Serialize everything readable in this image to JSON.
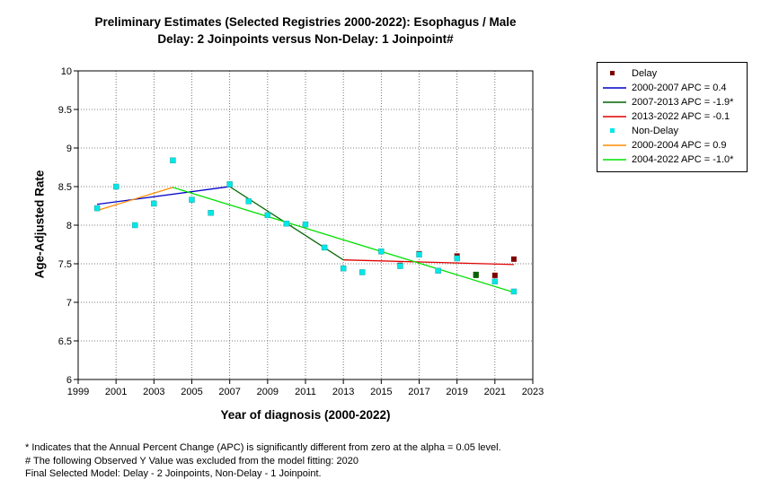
{
  "chart_data": {
    "type": "scatter",
    "title": "Preliminary Estimates (Selected Registries 2000-2022): Esophagus / Male",
    "subtitle": "Delay: 2 Joinpoints  versus  Non-Delay: 1 Joinpoint#",
    "xlabel": "Year of diagnosis (2000-2022)",
    "ylabel": "Age-Adjusted Rate",
    "xlim": [
      1999,
      2023
    ],
    "ylim": [
      6,
      10
    ],
    "x_ticks": [
      1999,
      2001,
      2003,
      2005,
      2007,
      2009,
      2011,
      2013,
      2015,
      2017,
      2019,
      2021,
      2023
    ],
    "y_ticks": [
      6,
      6.5,
      7,
      7.5,
      8,
      8.5,
      9,
      9.5,
      10
    ],
    "y_tick_labels": [
      "6",
      "6.5",
      "7",
      "7.5",
      "8",
      "8.5",
      "9",
      "9.5",
      "10"
    ],
    "grid": true,
    "legend_position": "right",
    "series": [
      {
        "name": "Delay",
        "kind": "points",
        "color": "#800000",
        "x": [
          2000,
          2001,
          2002,
          2003,
          2004,
          2005,
          2006,
          2007,
          2008,
          2009,
          2010,
          2011,
          2012,
          2013,
          2014,
          2015,
          2016,
          2017,
          2018,
          2019,
          2020,
          2021,
          2022
        ],
        "y": [
          8.22,
          8.5,
          8.0,
          8.28,
          8.84,
          8.33,
          8.16,
          8.53,
          8.31,
          8.13,
          8.02,
          8.01,
          7.71,
          7.44,
          7.39,
          7.66,
          7.48,
          7.63,
          7.41,
          7.6,
          7.36,
          7.35,
          7.56
        ]
      },
      {
        "name": "2000-2007 APC  =  0.4",
        "kind": "line",
        "color": "#0000c8",
        "x": [
          2000,
          2007
        ],
        "y": [
          8.27,
          8.5
        ]
      },
      {
        "name": "2007-2013 APC  =  -1.9*",
        "kind": "line",
        "color": "#006400",
        "x": [
          2007,
          2013
        ],
        "y": [
          8.5,
          7.55
        ]
      },
      {
        "name": "2013-2022 APC  =  -0.1",
        "kind": "line",
        "color": "#e00000",
        "x": [
          2013,
          2022
        ],
        "y": [
          7.55,
          7.49
        ]
      },
      {
        "name": "Non-Delay",
        "kind": "points",
        "color": "#00e8e8",
        "x": [
          2000,
          2001,
          2002,
          2003,
          2004,
          2005,
          2006,
          2007,
          2008,
          2009,
          2010,
          2011,
          2012,
          2013,
          2014,
          2015,
          2016,
          2017,
          2018,
          2019,
          2021,
          2022
        ],
        "y": [
          8.22,
          8.5,
          8.0,
          8.28,
          8.84,
          8.33,
          8.16,
          8.53,
          8.31,
          8.13,
          8.02,
          8.01,
          7.71,
          7.44,
          7.39,
          7.66,
          7.47,
          7.62,
          7.41,
          7.57,
          7.27,
          7.14
        ]
      },
      {
        "name": "2000-2004 APC  =  0.9",
        "kind": "line",
        "color": "#ff8c00",
        "x": [
          2000,
          2004
        ],
        "y": [
          8.19,
          8.49
        ]
      },
      {
        "name": "2004-2022 APC  =  -1.0*",
        "kind": "line",
        "color": "#00e000",
        "x": [
          2004,
          2022
        ],
        "y": [
          8.49,
          7.13
        ]
      }
    ],
    "excluded_point": {
      "x": 2020,
      "y": 7.35,
      "color": "#006400"
    }
  },
  "footnotes": {
    "line1": "* Indicates that the Annual Percent Change (APC) is significantly different from zero at the alpha = 0.05 level.",
    "line2": " # The following Observed Y Value was excluded from the model fitting: 2020",
    "line3": "Final Selected Model: Delay - 2 Joinpoints, Non-Delay - 1 Joinpoint."
  }
}
